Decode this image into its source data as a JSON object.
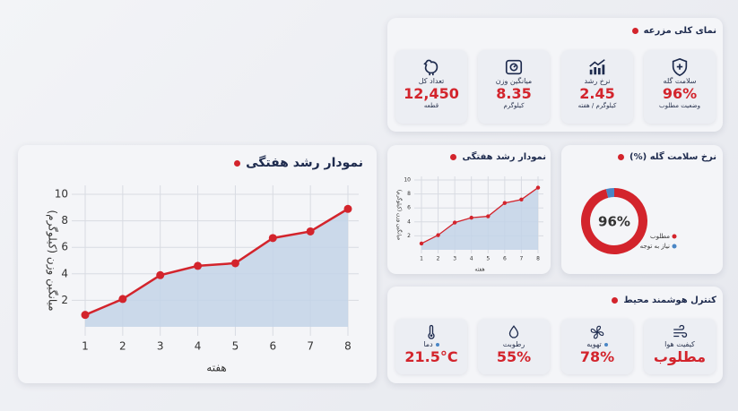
{
  "overview": {
    "title": "نمای کلی مزرعه",
    "cards": [
      {
        "label": "سلامت گله",
        "value": "96%",
        "sub": "وضعیت مطلوب"
      },
      {
        "label": "نرخ رشد",
        "value": "2.45",
        "sub": "کیلوگرم / هفته"
      },
      {
        "label": "میانگین وزن",
        "value": "8.35",
        "sub": "کیلوگرم"
      },
      {
        "label": "تعداد کل",
        "value": "12,450",
        "sub": "قطعه"
      }
    ]
  },
  "weekly_growth_large": {
    "type": "line",
    "title": "نمودار رشد هفتگی",
    "x_label": "هفته",
    "y_label": "میانگین وزن (کیلوگرم)",
    "x": [
      1,
      2,
      3,
      4,
      5,
      6,
      7,
      8
    ],
    "values": [
      0.9,
      2.1,
      3.9,
      4.6,
      4.8,
      6.7,
      7.2,
      8.9
    ],
    "xlim": [
      1,
      8
    ],
    "xticks": [
      1,
      2,
      3,
      4,
      5,
      6,
      7,
      8
    ],
    "ylim": [
      0,
      10
    ],
    "yticks": [
      2,
      4,
      6,
      8,
      10
    ],
    "color": "#d3242c",
    "area_color": "#c3d3e8",
    "grid": true
  },
  "weekly_growth_small": {
    "type": "line",
    "title": "نمودار رشد هفتگی",
    "x_label": "هفته",
    "y_label": "میانگین وزن (کیلوگرم)",
    "x": [
      1,
      2,
      3,
      4,
      5,
      6,
      7,
      8
    ],
    "values": [
      0.9,
      2.1,
      3.9,
      4.6,
      4.8,
      6.7,
      7.2,
      8.9
    ],
    "xlim": [
      1,
      8
    ],
    "xticks": [
      1,
      2,
      3,
      4,
      5,
      6,
      7,
      8
    ],
    "ylim": [
      0,
      10
    ],
    "yticks": [
      2,
      4,
      6,
      8,
      10
    ],
    "color": "#d3242c",
    "area_color": "#c3d3e8",
    "grid": true
  },
  "flock_health": {
    "type": "pie",
    "title": "نرخ سلامت گله (%)",
    "center_label": "96%",
    "categories": [
      "مطلوب",
      "نیاز به توجه"
    ],
    "values": [
      96,
      4
    ],
    "colors": [
      "#d3242c",
      "#4a86c5"
    ]
  },
  "environment": {
    "title": "کنترل هوشمند محیط",
    "cards": [
      {
        "label": "کیفیت هوا",
        "value": "مطلوب"
      },
      {
        "label": "تهویه",
        "value": "78%"
      },
      {
        "label": "رطوبت",
        "value": "55%"
      },
      {
        "label": "دما",
        "value": "21.5°C"
      }
    ]
  }
}
